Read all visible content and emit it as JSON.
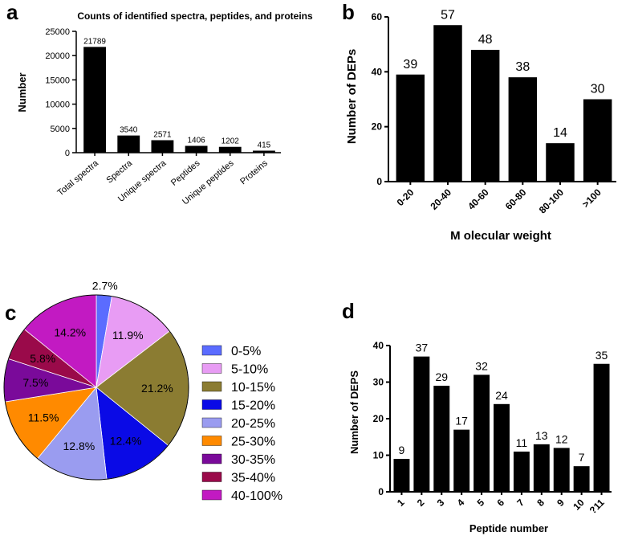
{
  "panels": {
    "a": "a",
    "b": "b",
    "c": "c",
    "d": "d"
  },
  "chart_data": [
    {
      "panel": "a",
      "type": "bar",
      "title": "Counts of identified spectra, peptides, and proteins",
      "xlabel": "",
      "ylabel": "Number",
      "ylim": [
        0,
        25000
      ],
      "yticks": [
        0,
        5000,
        10000,
        15000,
        20000,
        25000
      ],
      "categories": [
        "Total spectra",
        "Spectra",
        "Unique spectra",
        "Peptides",
        "Unique peptides",
        "Proteins"
      ],
      "values": [
        21789,
        3540,
        2571,
        1406,
        1202,
        415
      ],
      "value_labels": [
        "21789",
        "3540",
        "2571",
        "1406",
        "1202",
        "415"
      ],
      "bar_color": "#000000"
    },
    {
      "panel": "b",
      "type": "bar",
      "title": "",
      "xlabel": "M olecular weight",
      "ylabel": "Number of DEPs",
      "ylim": [
        0,
        60
      ],
      "yticks": [
        0,
        20,
        40,
        60
      ],
      "categories": [
        "0-20",
        "20-40",
        "40-60",
        "60-80",
        "80-100",
        ">100"
      ],
      "values": [
        39,
        57,
        48,
        38,
        14,
        30
      ],
      "value_labels": [
        "39",
        "57",
        "48",
        "38",
        "14",
        "30"
      ],
      "bar_color": "#000000"
    },
    {
      "panel": "c",
      "type": "pie",
      "title": "",
      "categories": [
        "0-5%",
        "5-10%",
        "10-15%",
        "15-20%",
        "20-25%",
        "25-30%",
        "30-35%",
        "35-40%",
        "40-100%"
      ],
      "values": [
        2.7,
        11.9,
        21.2,
        12.4,
        12.8,
        11.5,
        7.5,
        5.8,
        14.2
      ],
      "value_labels": [
        "2.7%",
        "11.9%",
        "21.2%",
        "12.4%",
        "12.8%",
        "11.5%",
        "7.5%",
        "5.8%",
        "14.2%"
      ],
      "colors": [
        "#5b6cff",
        "#e89cf4",
        "#8b7c32",
        "#0a0ae6",
        "#9a9cf0",
        "#ff8a00",
        "#7a0a9a",
        "#9a0a4a",
        "#c21ac2"
      ]
    },
    {
      "panel": "d",
      "type": "bar",
      "title": "",
      "xlabel": "Peptide number",
      "ylabel": "Number of DEPS",
      "ylim": [
        0,
        40
      ],
      "yticks": [
        0,
        10,
        20,
        30,
        40
      ],
      "categories": [
        "1",
        "2",
        "3",
        "4",
        "5",
        "6",
        "7",
        "8",
        "9",
        "10",
        "?11"
      ],
      "values": [
        9,
        37,
        29,
        17,
        32,
        24,
        11,
        13,
        12,
        7,
        35
      ],
      "value_labels": [
        "9",
        "37",
        "29",
        "17",
        "32",
        "24",
        "11",
        "13",
        "12",
        "7",
        "35"
      ],
      "bar_color": "#000000"
    }
  ]
}
